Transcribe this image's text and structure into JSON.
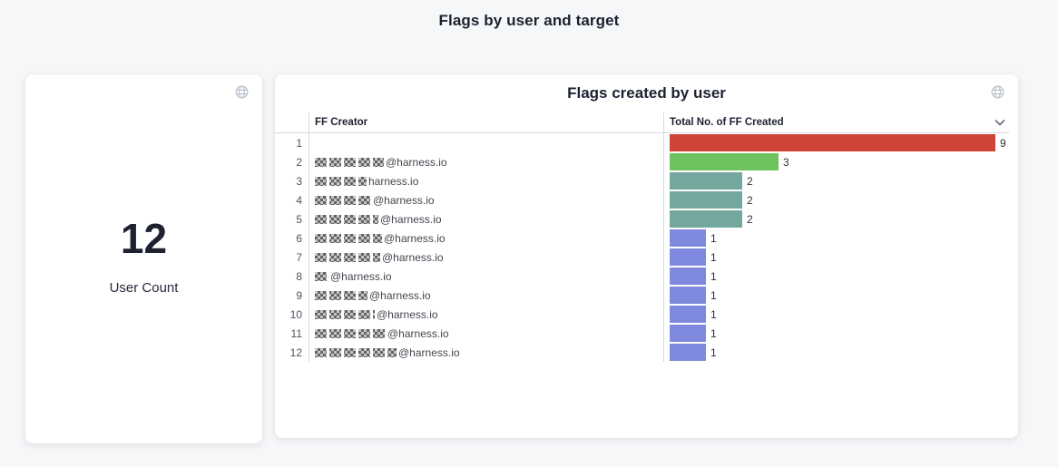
{
  "page": {
    "title": "Flags by user and target"
  },
  "stat_card": {
    "value": "12",
    "label": "User Count"
  },
  "table_card": {
    "title": "Flags created by user",
    "columns": {
      "creator": "FF Creator",
      "total": "Total No. of FF Created"
    },
    "max_value": 9,
    "rows": [
      {
        "rank": 1,
        "email": "",
        "redact_width": 0,
        "value": 9,
        "color": "#CF4437"
      },
      {
        "rank": 2,
        "email": "@harness.io",
        "redact_width": 76,
        "value": 3,
        "color": "#6FC35F"
      },
      {
        "rank": 3,
        "email": "harness.io",
        "redact_width": 57,
        "value": 2,
        "color": "#74A89E"
      },
      {
        "rank": 4,
        "email": "@harness.io",
        "redact_width": 62,
        "value": 2,
        "color": "#74A89E"
      },
      {
        "rank": 5,
        "email": "@harness.io",
        "redact_width": 70,
        "value": 2,
        "color": "#74A89E"
      },
      {
        "rank": 6,
        "email": "@harness.io",
        "redact_width": 74,
        "value": 1,
        "color": "#7F89DD"
      },
      {
        "rank": 7,
        "email": "@harness.io",
        "redact_width": 72,
        "value": 1,
        "color": "#7F89DD"
      },
      {
        "rank": 8,
        "email": "@harness.io",
        "redact_width": 15,
        "value": 1,
        "color": "#7F89DD"
      },
      {
        "rank": 9,
        "email": "@harness.io",
        "redact_width": 58,
        "value": 1,
        "color": "#7F89DD"
      },
      {
        "rank": 10,
        "email": "@harness.io",
        "redact_width": 66,
        "value": 1,
        "color": "#7F89DD"
      },
      {
        "rank": 11,
        "email": "@harness.io",
        "redact_width": 78,
        "value": 1,
        "color": "#7F89DD"
      },
      {
        "rank": 12,
        "email": "@harness.io",
        "redact_width": 90,
        "value": 1,
        "color": "#7F89DD"
      }
    ]
  },
  "colors": {
    "bar_red": "#CF4437",
    "bar_green": "#6FC35F",
    "bar_teal": "#74A89E",
    "bar_purple": "#7F89DD",
    "text_dark": "#1b2130",
    "background": "#f6f7f9"
  },
  "chart_data": [
    {
      "type": "bar",
      "orientation": "horizontal",
      "title": "Flags created by user",
      "xlabel": "Total No. of FF Created",
      "ylabel": "FF Creator",
      "categories": [
        "1",
        "2",
        "3",
        "4",
        "5",
        "6",
        "7",
        "8",
        "9",
        "10",
        "11",
        "12"
      ],
      "values": [
        9,
        3,
        2,
        2,
        2,
        1,
        1,
        1,
        1,
        1,
        1,
        1
      ],
      "bar_colors": [
        "#CF4437",
        "#6FC35F",
        "#74A89E",
        "#74A89E",
        "#74A89E",
        "#7F89DD",
        "#7F89DD",
        "#7F89DD",
        "#7F89DD",
        "#7F89DD",
        "#7F89DD",
        "#7F89DD"
      ],
      "data_labels": true,
      "grid": false,
      "legend": "none"
    },
    {
      "type": "table",
      "title": "User Count",
      "values": [
        12
      ]
    }
  ]
}
